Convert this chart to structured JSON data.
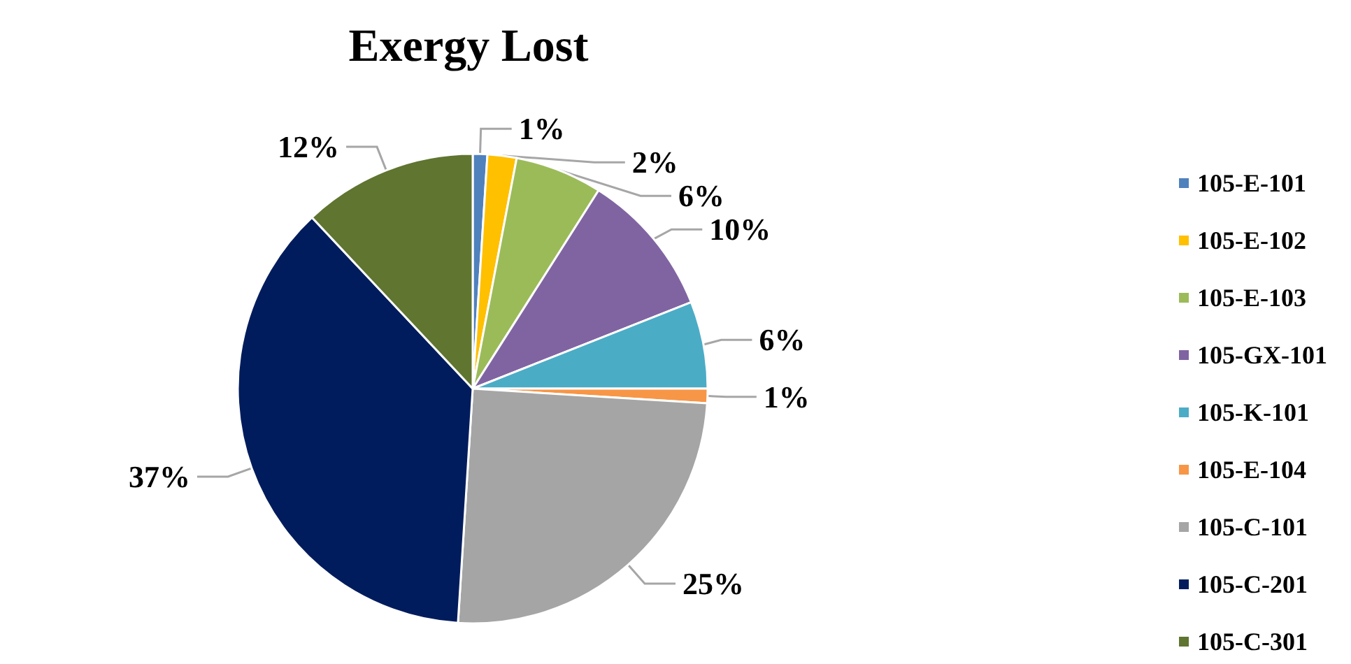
{
  "chart_data": {
    "type": "pie",
    "title": "Exergy Lost",
    "categories": [
      "105-E-101",
      "105-E-102",
      "105-E-103",
      "105-GX-101",
      "105-K-101",
      "105-E-104",
      "105-C-101",
      "105-C-201",
      "105-C-301"
    ],
    "values": [
      1,
      2,
      6,
      10,
      6,
      1,
      25,
      37,
      12
    ],
    "colors": [
      "#4f81bd",
      "#ffc000",
      "#9bbb59",
      "#8064a2",
      "#4bacc6",
      "#f79646",
      "#a5a5a5",
      "#001c5c",
      "#5f7530"
    ],
    "value_labels": [
      "1%",
      "2%",
      "6%",
      "10%",
      "6%",
      "1%",
      "25%",
      "37%",
      "12%"
    ],
    "legend": "right"
  }
}
